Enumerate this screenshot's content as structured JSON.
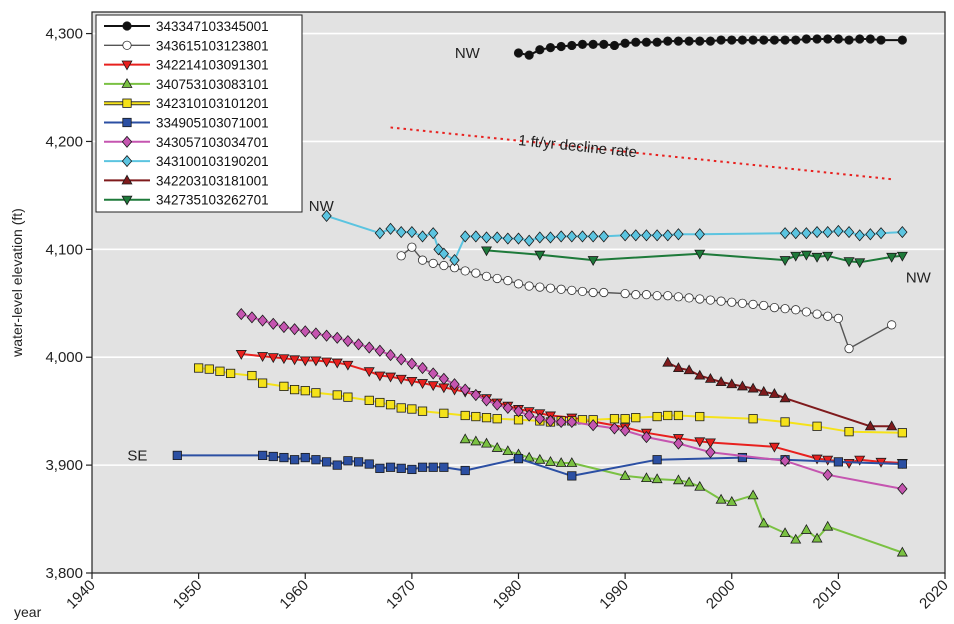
{
  "chart_data": {
    "type": "line",
    "xlabel": "year",
    "ylabel": "water-level elevation (ft)",
    "xlim": [
      1940,
      2020
    ],
    "ylim": [
      3800,
      4320
    ],
    "x_ticks": [
      1940,
      1950,
      1960,
      1970,
      1980,
      1990,
      2000,
      2010,
      2020
    ],
    "y_ticks": [
      3800,
      3900,
      4000,
      4100,
      4200,
      4300
    ],
    "y_tick_labels": [
      "3,800",
      "3,900",
      "4,000",
      "4,100",
      "4,200",
      "4,300"
    ],
    "grid": "horizontal",
    "background": "#e2e2e2",
    "legend_position": "top-left",
    "series": [
      {
        "name": "343347103345001",
        "color": "#111111",
        "marker": "circle",
        "filled": true,
        "x": [
          1980,
          1981,
          1982,
          1983,
          1984,
          1985,
          1986,
          1987,
          1988,
          1989,
          1990,
          1991,
          1992,
          1993,
          1994,
          1995,
          1996,
          1997,
          1998,
          1999,
          2000,
          2001,
          2002,
          2003,
          2004,
          2005,
          2006,
          2007,
          2008,
          2009,
          2010,
          2011,
          2012,
          2013,
          2014,
          2016
        ],
        "y": [
          4282,
          4280,
          4285,
          4287,
          4288,
          4289,
          4290,
          4290,
          4290,
          4289,
          4291,
          4292,
          4292,
          4292,
          4293,
          4293,
          4293,
          4293,
          4293,
          4294,
          4294,
          4294,
          4294,
          4294,
          4294,
          4294,
          4294,
          4295,
          4295,
          4295,
          4295,
          4294,
          4295,
          4295,
          4294,
          4294
        ]
      },
      {
        "name": "343615103123801",
        "color": "#444444",
        "marker": "circle",
        "filled": false,
        "x": [
          1969,
          1970,
          1971,
          1972,
          1973,
          1974,
          1975,
          1976,
          1977,
          1978,
          1979,
          1980,
          1981,
          1982,
          1983,
          1984,
          1985,
          1986,
          1987,
          1988,
          1990,
          1991,
          1992,
          1993,
          1994,
          1995,
          1996,
          1997,
          1998,
          1999,
          2000,
          2001,
          2002,
          2003,
          2004,
          2005,
          2006,
          2007,
          2008,
          2009,
          2010,
          2011,
          2015
        ],
        "y": [
          4094,
          4102,
          4090,
          4087,
          4085,
          4083,
          4080,
          4078,
          4075,
          4073,
          4071,
          4068,
          4066,
          4065,
          4064,
          4063,
          4062,
          4061,
          4060,
          4060,
          4059,
          4058,
          4058,
          4057,
          4057,
          4056,
          4055,
          4054,
          4053,
          4052,
          4051,
          4050,
          4049,
          4048,
          4046,
          4045,
          4044,
          4042,
          4040,
          4038,
          4036,
          4008,
          4030
        ]
      },
      {
        "name": "342214103091301",
        "color": "#e8201e",
        "marker": "triangle-down",
        "filled": true,
        "x": [
          1954,
          1956,
          1957,
          1958,
          1959,
          1960,
          1961,
          1962,
          1963,
          1964,
          1966,
          1967,
          1968,
          1969,
          1970,
          1971,
          1972,
          1973,
          1974,
          1975,
          1976,
          1977,
          1978,
          1979,
          1980,
          1981,
          1982,
          1983,
          1985,
          1990,
          1992,
          1995,
          1997,
          1998,
          2004,
          2008,
          2009,
          2011,
          2012,
          2014,
          2016
        ],
        "y": [
          4003,
          4001,
          4000,
          3999,
          3998,
          3997,
          3997,
          3996,
          3995,
          3993,
          3987,
          3983,
          3982,
          3980,
          3978,
          3976,
          3974,
          3972,
          3970,
          3968,
          3965,
          3962,
          3958,
          3955,
          3952,
          3950,
          3948,
          3946,
          3944,
          3935,
          3930,
          3925,
          3922,
          3921,
          3917,
          3906,
          3905,
          3902,
          3905,
          3903,
          3902
        ]
      },
      {
        "name": "340753103083101",
        "color": "#7ac142",
        "marker": "triangle-up",
        "filled": true,
        "x": [
          1975,
          1976,
          1977,
          1978,
          1979,
          1980,
          1981,
          1982,
          1983,
          1984,
          1985,
          1990,
          1992,
          1993,
          1995,
          1996,
          1997,
          1999,
          2000,
          2002,
          2003,
          2005,
          2006,
          2007,
          2008,
          2009,
          2016
        ],
        "y": [
          3924,
          3922,
          3920,
          3916,
          3913,
          3910,
          3907,
          3905,
          3903,
          3902,
          3902,
          3890,
          3888,
          3887,
          3886,
          3884,
          3880,
          3868,
          3866,
          3872,
          3846,
          3837,
          3831,
          3840,
          3832,
          3843,
          3819
        ]
      },
      {
        "name": "342310103101201",
        "color": "#f5e21a",
        "marker": "square",
        "filled": true,
        "x": [
          1950,
          1951,
          1952,
          1953,
          1955,
          1956,
          1958,
          1959,
          1960,
          1961,
          1963,
          1964,
          1966,
          1967,
          1968,
          1969,
          1970,
          1971,
          1973,
          1975,
          1976,
          1977,
          1978,
          1980,
          1982,
          1983,
          1984,
          1985,
          1986,
          1987,
          1989,
          1990,
          1991,
          1993,
          1994,
          1995,
          1997,
          2002,
          2005,
          2008,
          2011,
          2016
        ],
        "y": [
          3990,
          3989,
          3987,
          3985,
          3983,
          3976,
          3973,
          3970,
          3969,
          3967,
          3965,
          3963,
          3960,
          3958,
          3956,
          3953,
          3952,
          3950,
          3948,
          3946,
          3945,
          3944,
          3943,
          3942,
          3941,
          3940,
          3941,
          3941,
          3942,
          3942,
          3943,
          3943,
          3944,
          3945,
          3946,
          3946,
          3945,
          3943,
          3940,
          3936,
          3931,
          3930
        ]
      },
      {
        "name": "334905103071001",
        "color": "#2b4fa3",
        "marker": "square",
        "filled": true,
        "x": [
          1948,
          1956,
          1957,
          1958,
          1959,
          1960,
          1961,
          1962,
          1963,
          1964,
          1965,
          1966,
          1967,
          1968,
          1969,
          1970,
          1971,
          1972,
          1973,
          1975,
          1980,
          1985,
          1993,
          2001,
          2005,
          2010,
          2016
        ],
        "y": [
          3909,
          3909,
          3908,
          3907,
          3905,
          3907,
          3905,
          3903,
          3900,
          3904,
          3903,
          3901,
          3897,
          3898,
          3897,
          3896,
          3898,
          3898,
          3898,
          3895,
          3906,
          3890,
          3905,
          3907,
          3905,
          3903,
          3901
        ]
      },
      {
        "name": "343057103034701",
        "color": "#c555b0",
        "marker": "diamond",
        "filled": true,
        "x": [
          1954,
          1955,
          1956,
          1957,
          1958,
          1959,
          1960,
          1961,
          1962,
          1963,
          1964,
          1965,
          1966,
          1967,
          1968,
          1969,
          1970,
          1971,
          1972,
          1973,
          1974,
          1975,
          1976,
          1977,
          1978,
          1979,
          1980,
          1981,
          1982,
          1983,
          1984,
          1985,
          1987,
          1989,
          1990,
          1992,
          1995,
          1998,
          2005,
          2009,
          2016
        ],
        "y": [
          4040,
          4037,
          4034,
          4031,
          4028,
          4026,
          4024,
          4022,
          4020,
          4018,
          4015,
          4012,
          4009,
          4006,
          4002,
          3998,
          3994,
          3990,
          3985,
          3980,
          3975,
          3970,
          3965,
          3960,
          3956,
          3953,
          3950,
          3946,
          3943,
          3941,
          3940,
          3940,
          3937,
          3934,
          3932,
          3926,
          3920,
          3912,
          3904,
          3891,
          3878
        ]
      },
      {
        "name": "343100103190201",
        "color": "#5bc4e0",
        "marker": "diamond",
        "filled": true,
        "x": [
          1962,
          1967,
          1968,
          1969,
          1970,
          1971,
          1972,
          1972.5,
          1973,
          1974,
          1975,
          1976,
          1977,
          1978,
          1979,
          1980,
          1981,
          1982,
          1983,
          1984,
          1985,
          1986,
          1987,
          1988,
          1990,
          1991,
          1992,
          1993,
          1994,
          1995,
          1997,
          2005,
          2006,
          2007,
          2008,
          2009,
          2010,
          2011,
          2012,
          2013,
          2014,
          2016
        ],
        "y": [
          4131,
          4115,
          4119,
          4116,
          4116,
          4112,
          4115,
          4100,
          4096,
          4090,
          4112,
          4112,
          4111,
          4111,
          4110,
          4110,
          4108,
          4111,
          4111,
          4112,
          4112,
          4112,
          4112,
          4112,
          4113,
          4113,
          4113,
          4113,
          4113,
          4114,
          4114,
          4115,
          4115,
          4115,
          4116,
          4116,
          4117,
          4116,
          4113,
          4114,
          4115,
          4116
        ]
      },
      {
        "name": "342203103181001",
        "color": "#7f1a1c",
        "marker": "triangle-up",
        "filled": true,
        "x": [
          1994,
          1995,
          1996,
          1997,
          1998,
          1999,
          2000,
          2001,
          2002,
          2003,
          2004,
          2005,
          2013,
          2015
        ],
        "y": [
          3995,
          3990,
          3988,
          3983,
          3980,
          3977,
          3975,
          3973,
          3971,
          3968,
          3966,
          3962,
          3936,
          3936
        ]
      },
      {
        "name": "342735103262701",
        "color": "#1e7a3a",
        "marker": "triangle-down",
        "filled": true,
        "x": [
          1977,
          1982,
          1987,
          1997,
          2005,
          2006,
          2007,
          2008,
          2009,
          2011,
          2012,
          2015,
          2016
        ],
        "y": [
          4099,
          4095,
          4090,
          4096,
          4090,
          4094,
          4095,
          4093,
          4094,
          4089,
          4088,
          4093,
          4094
        ]
      }
    ],
    "reference_line": {
      "label": "1 ft/yr decline rate",
      "color": "#e8201e",
      "x": [
        1968,
        2015
      ],
      "y": [
        4213,
        4165
      ]
    },
    "annotations": [
      {
        "text": "NW",
        "x": 1975.2,
        "y": 4282,
        "anchor": "middle"
      },
      {
        "text": "NW",
        "x": 1961.5,
        "y": 4140,
        "anchor": "middle"
      },
      {
        "text": "NW",
        "x": 2017.5,
        "y": 4074,
        "anchor": "middle"
      },
      {
        "text": "SE",
        "x": 1945.2,
        "y": 3909,
        "anchor": "end"
      }
    ]
  }
}
